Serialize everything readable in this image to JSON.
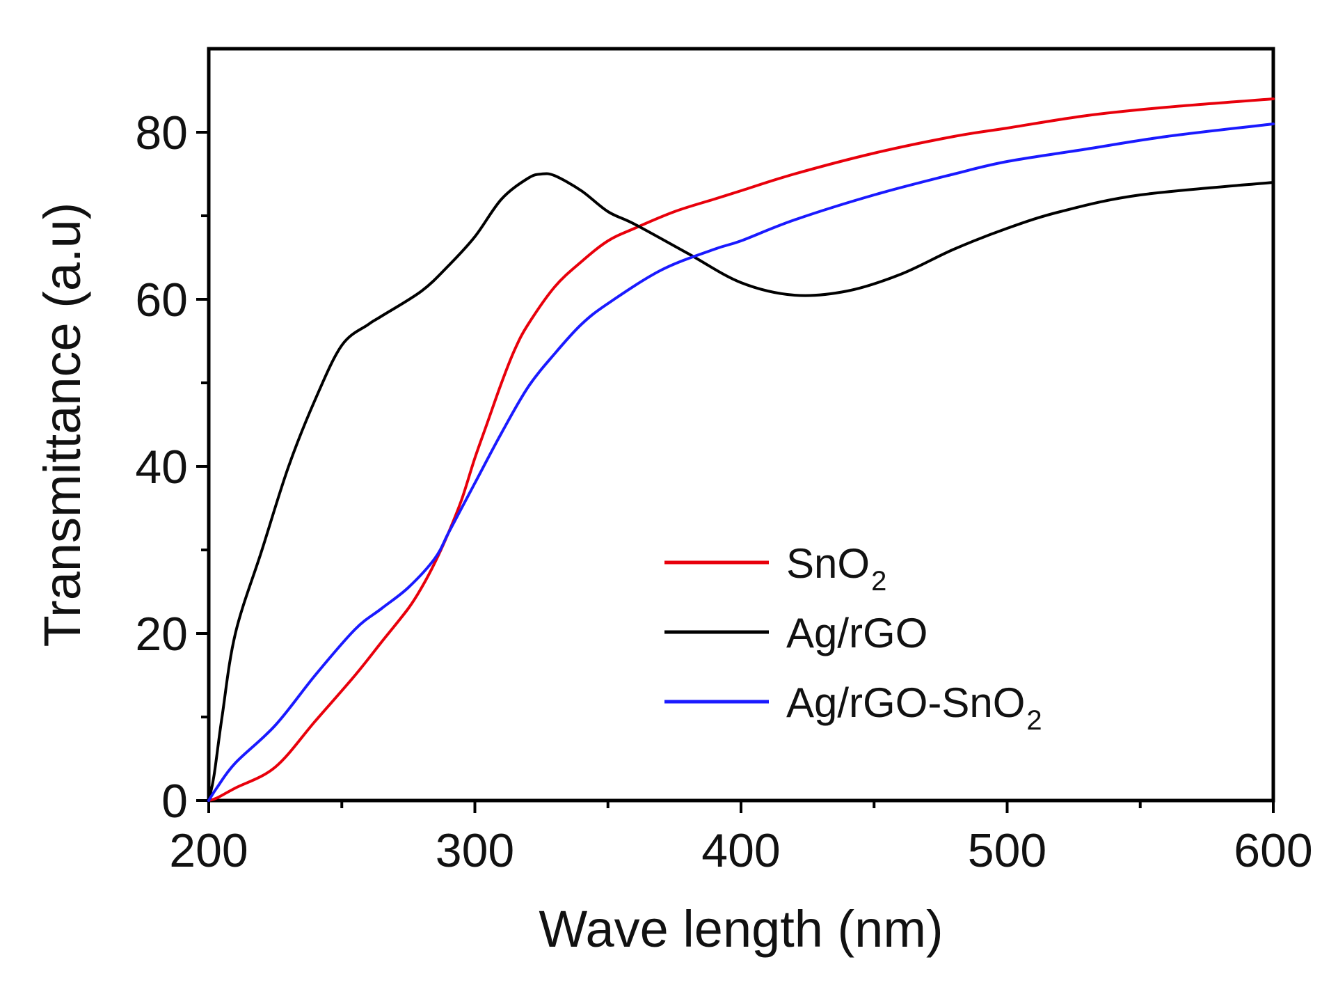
{
  "chart_data": {
    "type": "line",
    "title": "",
    "xlabel": "Wave length (nm)",
    "ylabel": "Transmittance (a.u)",
    "xlim": [
      200,
      600
    ],
    "ylim": [
      0,
      90
    ],
    "xticks": [
      200,
      300,
      400,
      500,
      600
    ],
    "xticks_minor": [
      250,
      350,
      450,
      550
    ],
    "yticks": [
      0,
      20,
      40,
      60,
      80
    ],
    "yticks_minor": [
      10,
      30,
      50,
      70
    ],
    "legend_position": "lower-right",
    "series": [
      {
        "name": "SnO2",
        "label_main": "SnO",
        "label_sub": "2",
        "color": "#e8000b",
        "x": [
          200,
          203,
          210,
          225,
          240,
          255,
          265,
          275,
          280,
          285,
          290,
          295,
          300,
          305,
          310,
          315,
          320,
          330,
          340,
          350,
          360,
          375,
          390,
          400,
          420,
          450,
          480,
          500,
          530,
          560,
          600
        ],
        "y": [
          0,
          0.3,
          1.5,
          4,
          9.5,
          15,
          19,
          23,
          25.5,
          28.5,
          32,
          36,
          41,
          45.5,
          50,
          54,
          57,
          61.5,
          64.5,
          67,
          68.5,
          70.5,
          72,
          73,
          75,
          77.5,
          79.5,
          80.5,
          82,
          83,
          84
        ]
      },
      {
        "name": "Ag/rGO",
        "label_main": "Ag/rGO",
        "label_sub": "",
        "color": "#000000",
        "x": [
          200,
          202,
          205,
          210,
          220,
          230,
          240,
          250,
          260,
          265,
          280,
          290,
          300,
          310,
          320,
          325,
          330,
          340,
          350,
          360,
          380,
          400,
          420,
          440,
          460,
          480,
          500,
          520,
          550,
          600
        ],
        "y": [
          0,
          3,
          10,
          20,
          30,
          40,
          48,
          54.5,
          57,
          58,
          61,
          64,
          67.5,
          72,
          74.5,
          75,
          74.8,
          73,
          70.5,
          69,
          65.5,
          62,
          60.5,
          61,
          63,
          66,
          68.5,
          70.5,
          72.5,
          74
        ]
      },
      {
        "name": "Ag/rGO-SnO2",
        "label_main": "Ag/rGO-SnO",
        "label_sub": "2",
        "color": "#1a1aff",
        "x": [
          200,
          203,
          210,
          225,
          240,
          255,
          265,
          275,
          285,
          290,
          295,
          300,
          310,
          320,
          330,
          340,
          350,
          370,
          390,
          400,
          420,
          450,
          480,
          500,
          530,
          560,
          600
        ],
        "y": [
          0,
          1.5,
          4.5,
          9,
          15,
          20.5,
          23,
          25.5,
          29,
          32,
          35,
          38,
          44,
          49.5,
          53.5,
          57,
          59.5,
          63.5,
          66,
          67,
          69.5,
          72.5,
          75,
          76.5,
          78,
          79.5,
          81
        ]
      }
    ]
  }
}
